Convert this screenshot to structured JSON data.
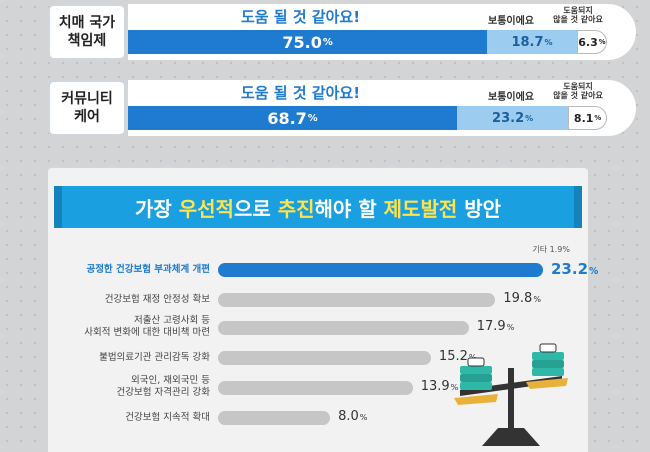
{
  "stacked_rows": [
    {
      "label": "치매 국가\n책임제",
      "headers": [
        "도움 될 것 같아요!",
        "보통이에요",
        "도움되지\n않을 것 같아요"
      ],
      "values": [
        75.0,
        18.7,
        6.3
      ],
      "display": [
        "75.0",
        "18.7",
        "6.3"
      ]
    },
    {
      "label": "커뮤니티\n케어",
      "headers": [
        "도움 될 것 같아요!",
        "보통이에요",
        "도움되지\n않을 것 같아요"
      ],
      "values": [
        68.7,
        23.2,
        8.1
      ],
      "display": [
        "68.7",
        "23.2",
        "8.1"
      ]
    }
  ],
  "colors": {
    "main": "#1f7bd0",
    "light": "#9ccdf1",
    "gray": "#c6c6c6",
    "ribbon": "#1a9fe0",
    "highlight": "#ffe34d"
  },
  "chart_data": {
    "type": "bar",
    "title_parts": [
      {
        "text": "가장 ",
        "hl": false
      },
      {
        "text": "우선적",
        "hl": true
      },
      {
        "text": "으로 ",
        "hl": false
      },
      {
        "text": "추진",
        "hl": true
      },
      {
        "text": "해야 할 ",
        "hl": false
      },
      {
        "text": "제도발전",
        "hl": true
      },
      {
        "text": " 방안",
        "hl": false
      }
    ],
    "note": "기타 1.9%",
    "unit": "%",
    "categories": [
      "공정한 건강보험 부과체계 개편",
      "건강보험 재정 안정성 확보",
      "저출산 고령사회 등\n사회적 변화에 대한 대비책 마련",
      "불법의료기관 관리감독 강화",
      "외국인, 재외국민 등\n건강보험 자격관리 강화",
      "건강보험 지속적 확대"
    ],
    "values": [
      23.2,
      19.8,
      17.9,
      15.2,
      13.9,
      8.0
    ],
    "display": [
      "23.2",
      "19.8",
      "17.9",
      "15.2",
      "13.9",
      "8.0"
    ],
    "highlight_index": 0
  }
}
